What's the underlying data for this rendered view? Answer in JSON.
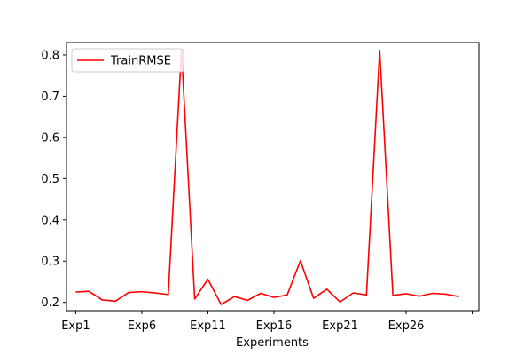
{
  "chart_data": {
    "type": "line",
    "title": "",
    "xlabel": "Experiments",
    "ylabel": "",
    "ylim": [
      0.18,
      0.83
    ],
    "yticks": [
      0.2,
      0.3,
      0.4,
      0.5,
      0.6,
      0.7,
      0.8
    ],
    "ytick_labels": [
      "0.2",
      "0.3",
      "0.4",
      "0.5",
      "0.6",
      "0.7",
      "0.8"
    ],
    "xticks": [
      {
        "index": 0,
        "label": "Exp1"
      },
      {
        "index": 5,
        "label": "Exp6"
      },
      {
        "index": 10,
        "label": "Exp11"
      },
      {
        "index": 15,
        "label": "Exp16"
      },
      {
        "index": 20,
        "label": "Exp21"
      },
      {
        "index": 25,
        "label": "Exp26"
      },
      {
        "index": 30,
        "label": ""
      }
    ],
    "legend_position": "top-left",
    "grid": false,
    "series": [
      {
        "name": "TrainRMSE",
        "color": "#ff0000",
        "values": [
          0.225,
          0.227,
          0.206,
          0.203,
          0.224,
          0.226,
          0.223,
          0.219,
          0.811,
          0.208,
          0.256,
          0.195,
          0.214,
          0.205,
          0.222,
          0.212,
          0.218,
          0.301,
          0.21,
          0.232,
          0.201,
          0.223,
          0.218,
          0.811,
          0.217,
          0.221,
          0.215,
          0.222,
          0.22,
          0.214
        ]
      }
    ]
  }
}
